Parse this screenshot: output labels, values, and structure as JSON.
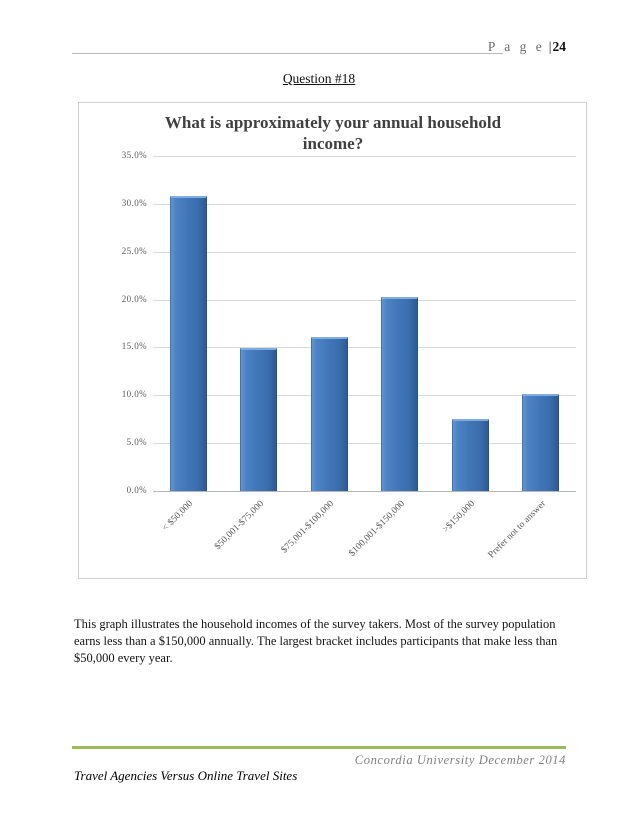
{
  "page": {
    "header": {
      "page_label": "P a g e",
      "separator": "|",
      "page_number": "24"
    },
    "question_title": "Question #18",
    "paragraph": "This graph illustrates the household incomes of the survey takers. Most of the survey population earns less than a $150,000 annually. The largest bracket includes participants that make less than $50,000 every year.",
    "footer": {
      "right_text": "Concordia University December 2014",
      "left_text": "Travel Agencies Versus Online Travel Sites",
      "rule_color": "#9bbb59"
    }
  },
  "chart_data": {
    "type": "bar",
    "title": "What is approximately your annual household income?",
    "categories": [
      "< $50,000",
      "$50,001-$75,000",
      "$75,001-$100,000",
      "$100,001-$150,000",
      ">$150,000",
      "Prefer not to answer"
    ],
    "values": [
      30.8,
      14.9,
      16.1,
      20.3,
      7.5,
      10.1
    ],
    "unit": "%",
    "xlabel": "",
    "ylabel": "",
    "ylim": [
      0,
      35
    ],
    "ytick_step": 5,
    "ytick_labels": [
      "0.0%",
      "5.0%",
      "10.0%",
      "15.0%",
      "20.0%",
      "25.0%",
      "30.0%",
      "35.0%"
    ],
    "grid": true,
    "legend_position": "none",
    "bar_color": "#4177b6",
    "gridline_color": "#d9d9d9",
    "title_color": "#404040"
  }
}
